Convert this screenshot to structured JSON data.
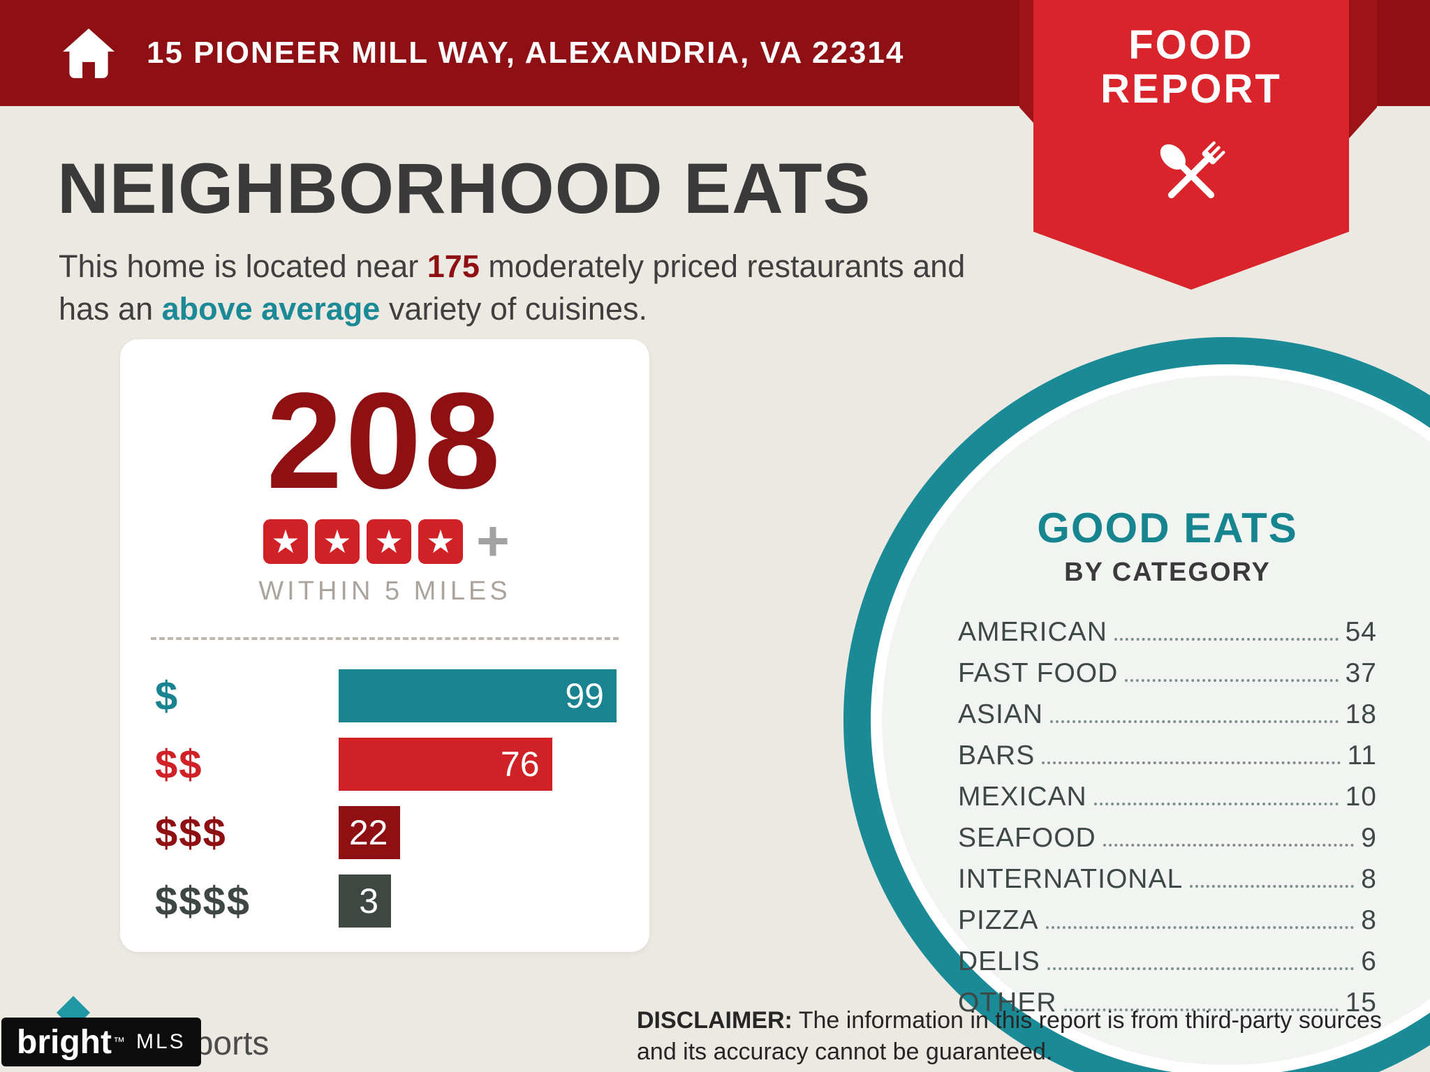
{
  "header": {
    "address": "15 PIONEER MILL WAY, ALEXANDRIA, VA 22314",
    "badge_line1": "FOOD",
    "badge_line2": "REPORT"
  },
  "title": "NEIGHBORHOOD EATS",
  "intro": {
    "pre": "This home is located near ",
    "count": "175",
    "mid": " moderately priced restaurants and has an ",
    "highlight": "above average",
    "post": " variety of cuisines."
  },
  "summary_card": {
    "total": "208",
    "star_count": 4,
    "plus": "+",
    "radius_label": "WITHIN 5 MILES"
  },
  "chart_data": [
    {
      "type": "bar",
      "orientation": "horizontal",
      "title": "208 restaurants rated 4+ stars within 5 miles, by price tier",
      "categories": [
        "$",
        "$$",
        "$$$",
        "$$$$"
      ],
      "values": [
        99,
        76,
        22,
        3
      ],
      "bar_colors": [
        "#19838f",
        "#d02127",
        "#8e1013",
        "#3f4743"
      ],
      "value_labels_inside": true,
      "xlim": [
        0,
        99
      ]
    },
    {
      "type": "table",
      "title": "GOOD EATS BY CATEGORY",
      "categories": [
        "AMERICAN",
        "FAST FOOD",
        "ASIAN",
        "BARS",
        "MEXICAN",
        "SEAFOOD",
        "INTERNATIONAL",
        "PIZZA",
        "DELIS",
        "OTHER"
      ],
      "values": [
        54,
        37,
        18,
        11,
        10,
        9,
        8,
        8,
        6,
        15
      ]
    }
  ],
  "good_eats": {
    "title": "GOOD EATS",
    "subtitle": "BY CATEGORY"
  },
  "footer": {
    "brand": "bright",
    "brand_tm": "™",
    "brand_mls": "MLS",
    "partial_logo_text": "eports",
    "disclaimer_label": "DISCLAIMER:",
    "disclaimer_text": " The information in this report is from third-party sources and its accuracy cannot be guaranteed."
  },
  "colors": {
    "header_red": "#8e1015",
    "ribbon_red": "#d8242a",
    "teal": "#17858f",
    "dark_red": "#8e1013",
    "bright_red": "#d02127",
    "slate": "#3f4743",
    "background": "#ece8e2"
  }
}
